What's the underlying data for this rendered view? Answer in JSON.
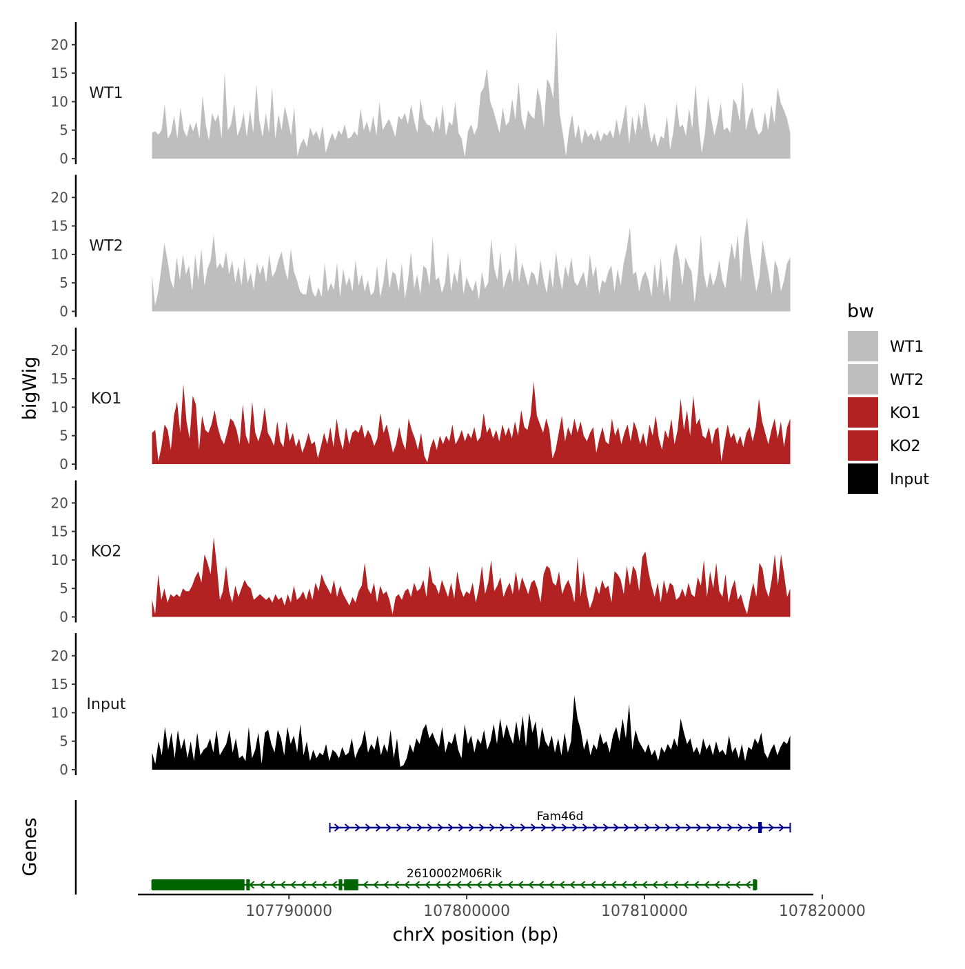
{
  "chart_data": {
    "type": "area",
    "title": "",
    "ylabel": "bigWig",
    "xlabel": "chrX position (bp)",
    "genes_label": "Genes",
    "xlim": [
      107781500,
      107819500
    ],
    "region": [
      107782300,
      107818200
    ],
    "ylim": [
      0,
      23
    ],
    "y_ticks": [
      0,
      5,
      10,
      15,
      20
    ],
    "x_ticks": [
      107790000,
      107800000,
      107810000,
      107820000
    ],
    "x_tick_labels": [
      "107790000",
      "107800000",
      "107810000",
      "107820000"
    ],
    "legend": {
      "title": "bw",
      "position": "right",
      "entries": [
        {
          "label": "WT1",
          "color": "#bebebe"
        },
        {
          "label": "WT2",
          "color": "#bebebe"
        },
        {
          "label": "KO1",
          "color": "#b22222"
        },
        {
          "label": "KO2",
          "color": "#b22222"
        },
        {
          "label": "Input",
          "color": "#000000"
        }
      ]
    },
    "series": [
      {
        "name": "WT1",
        "color": "#bebebe",
        "values": [
          4.5,
          4.8,
          4.2,
          5.0,
          9.6,
          3.5,
          4.5,
          7.5,
          3.5,
          9.0,
          5.0,
          3.8,
          6.2,
          4.8,
          6.5,
          3.5,
          11.0,
          6.0,
          3.2,
          8.0,
          6.5,
          7.8,
          3.5,
          15.2,
          5.0,
          6.0,
          9.5,
          4.0,
          5.5,
          8.0,
          3.8,
          8.5,
          4.5,
          13.0,
          6.5,
          3.8,
          8.0,
          4.5,
          12.5,
          3.5,
          7.8,
          5.0,
          9.2,
          6.8,
          4.0,
          9.0,
          0.5,
          2.5,
          3.5,
          2.0,
          5.5,
          4.0,
          4.8,
          3.2,
          5.8,
          1.0,
          3.0,
          4.5,
          3.2,
          5.0,
          4.2,
          6.0,
          3.5,
          3.8,
          4.8,
          4.0,
          8.8,
          5.0,
          6.5,
          4.5,
          7.5,
          4.0,
          10.0,
          5.0,
          6.0,
          7.0,
          5.5,
          3.8,
          7.5,
          6.8,
          8.0,
          6.0,
          9.5,
          6.5,
          4.5,
          10.5,
          7.0,
          6.0,
          5.8,
          4.5,
          7.5,
          5.0,
          9.5,
          4.0,
          6.5,
          5.8,
          10.0,
          4.5,
          3.5,
          0.3,
          4.8,
          6.0,
          4.2,
          5.5,
          11.5,
          12.5,
          15.8,
          10.0,
          8.5,
          6.5,
          4.5,
          9.0,
          5.8,
          6.5,
          10.5,
          6.8,
          13.5,
          7.0,
          5.0,
          8.5,
          7.5,
          7.0,
          12.5,
          10.0,
          5.5,
          14.0,
          13.0,
          10.5,
          22.5,
          8.0,
          4.5,
          0.5,
          5.0,
          7.8,
          3.5,
          6.0,
          2.5,
          5.2,
          3.8,
          4.5,
          3.2,
          5.0,
          3.0,
          4.5,
          4.0,
          5.0,
          3.5,
          7.0,
          4.0,
          6.5,
          9.5,
          2.5,
          7.5,
          4.0,
          8.0,
          5.0,
          10.0,
          6.0,
          2.8,
          4.5,
          2.0,
          4.0,
          3.5,
          7.5,
          1.5,
          4.8,
          9.8,
          5.5,
          6.0,
          4.0,
          8.8,
          5.2,
          13.0,
          6.0,
          1.0,
          4.5,
          10.8,
          7.0,
          4.0,
          6.5,
          9.8,
          5.0,
          5.5,
          4.5,
          10.5,
          9.5,
          6.5,
          13.5,
          5.0,
          7.5,
          9.0,
          5.5,
          4.2,
          4.8,
          8.2,
          5.0,
          9.5,
          6.2,
          12.5,
          9.8,
          8.5,
          7.0,
          4.5
        ]
      },
      {
        "name": "WT2",
        "color": "#bebebe",
        "values": [
          6.2,
          1.0,
          3.5,
          7.5,
          12.0,
          9.0,
          5.5,
          4.0,
          9.5,
          5.5,
          10.0,
          6.5,
          8.0,
          3.5,
          10.0,
          5.5,
          11.0,
          4.5,
          7.5,
          9.0,
          13.5,
          7.5,
          8.5,
          7.5,
          10.5,
          6.5,
          9.0,
          5.0,
          8.0,
          4.5,
          9.5,
          5.0,
          6.8,
          3.8,
          8.5,
          6.5,
          8.2,
          5.0,
          10.0,
          6.0,
          7.0,
          9.0,
          10.5,
          7.5,
          5.5,
          11.0,
          7.0,
          5.5,
          3.5,
          3.0,
          3.0,
          6.5,
          3.5,
          2.5,
          4.2,
          2.5,
          8.5,
          3.5,
          5.0,
          3.8,
          8.5,
          2.5,
          7.5,
          4.5,
          6.0,
          3.5,
          9.0,
          4.5,
          6.5,
          3.5,
          5.5,
          2.8,
          3.5,
          8.0,
          2.5,
          5.0,
          9.5,
          4.0,
          7.0,
          6.5,
          3.5,
          8.5,
          2.2,
          5.5,
          10.5,
          4.0,
          6.5,
          3.0,
          8.0,
          7.5,
          4.5,
          13.0,
          5.5,
          6.0,
          3.2,
          5.0,
          10.5,
          3.5,
          7.0,
          5.0,
          9.5,
          3.0,
          6.0,
          4.5,
          3.5,
          5.5,
          2.0,
          7.0,
          4.0,
          5.0,
          12.8,
          7.5,
          5.5,
          10.5,
          4.0,
          6.0,
          7.5,
          5.0,
          12.0,
          5.0,
          8.5,
          6.5,
          4.5,
          7.0,
          6.5,
          4.5,
          9.0,
          5.5,
          3.2,
          7.5,
          4.0,
          10.5,
          6.5,
          3.8,
          8.0,
          6.0,
          9.5,
          5.2,
          4.5,
          5.8,
          7.0,
          4.0,
          10.0,
          6.0,
          8.0,
          3.0,
          5.5,
          5.0,
          7.0,
          8.0,
          3.5,
          7.5,
          4.5,
          8.5,
          11.0,
          14.8,
          6.5,
          7.0,
          3.5,
          6.0,
          7.0,
          5.5,
          2.5,
          8.5,
          4.0,
          9.5,
          2.8,
          6.5,
          1.5,
          9.5,
          12.0,
          9.0,
          4.5,
          9.5,
          8.0,
          7.0,
          1.5,
          6.5,
          13.5,
          6.5,
          4.0,
          7.0,
          4.5,
          6.0,
          9.0,
          5.5,
          4.0,
          8.5,
          12.0,
          9.0,
          13.5,
          5.0,
          12.8,
          16.5,
          10.5,
          7.0,
          3.5,
          6.0,
          12.5,
          9.5,
          6.5,
          3.0,
          9.0,
          7.5,
          3.5,
          5.5,
          8.5,
          9.5
        ]
      },
      {
        "name": "KO1",
        "color": "#b22222",
        "values": [
          5.5,
          6.0,
          0.5,
          3.0,
          7.0,
          6.0,
          2.5,
          8.5,
          11.0,
          5.5,
          14.0,
          7.5,
          4.5,
          12.0,
          10.5,
          2.5,
          8.5,
          6.0,
          5.5,
          7.0,
          9.5,
          6.5,
          4.5,
          3.5,
          5.5,
          8.0,
          7.5,
          6.0,
          3.5,
          10.5,
          5.0,
          3.5,
          11.0,
          5.5,
          4.0,
          6.0,
          10.0,
          5.5,
          4.5,
          3.2,
          7.5,
          4.0,
          3.0,
          7.5,
          4.0,
          5.5,
          3.0,
          4.5,
          2.0,
          3.5,
          5.5,
          3.5,
          4.0,
          1.0,
          3.2,
          5.5,
          3.5,
          6.5,
          3.0,
          8.0,
          4.5,
          2.5,
          6.5,
          3.5,
          5.5,
          6.0,
          5.5,
          7.0,
          4.5,
          6.0,
          5.0,
          3.2,
          4.5,
          9.0,
          5.5,
          7.0,
          4.5,
          2.0,
          3.5,
          6.5,
          4.0,
          2.5,
          8.0,
          6.0,
          4.5,
          2.5,
          5.5,
          1.5,
          0.3,
          3.0,
          4.5,
          2.5,
          5.0,
          3.5,
          5.0,
          4.0,
          7.0,
          3.5,
          4.5,
          6.0,
          4.0,
          5.5,
          4.5,
          6.5,
          4.0,
          4.8,
          9.0,
          5.5,
          6.5,
          4.5,
          6.0,
          4.0,
          7.0,
          5.0,
          6.5,
          4.5,
          7.5,
          5.0,
          9.5,
          6.5,
          6.0,
          8.5,
          14.5,
          8.5,
          7.0,
          5.5,
          8.0,
          6.0,
          1.0,
          2.5,
          5.5,
          8.5,
          4.0,
          6.5,
          5.0,
          8.0,
          5.5,
          7.5,
          5.0,
          4.0,
          5.5,
          6.5,
          2.0,
          4.5,
          6.5,
          4.0,
          3.5,
          8.0,
          5.0,
          6.5,
          3.5,
          5.5,
          7.0,
          4.0,
          7.5,
          6.0,
          3.5,
          5.5,
          3.0,
          7.0,
          5.0,
          8.5,
          4.5,
          2.5,
          6.0,
          4.5,
          8.0,
          3.5,
          6.0,
          11.5,
          6.0,
          9.5,
          5.0,
          12.0,
          7.0,
          8.0,
          5.0,
          4.5,
          6.5,
          3.5,
          6.0,
          6.5,
          0.5,
          4.0,
          7.0,
          4.5,
          5.5,
          3.5,
          5.0,
          3.0,
          5.5,
          6.5,
          4.0,
          6.5,
          11.5,
          7.5,
          5.5,
          3.5,
          6.0,
          8.0,
          4.5,
          7.5,
          3.0,
          6.5,
          8.0
        ]
      },
      {
        "name": "KO2",
        "color": "#b22222",
        "values": [
          3.0,
          0.5,
          7.5,
          3.0,
          5.0,
          2.5,
          4.0,
          3.5,
          4.0,
          3.5,
          5.0,
          4.5,
          4.5,
          5.5,
          7.0,
          8.0,
          6.0,
          11.0,
          9.5,
          7.5,
          14.0,
          9.0,
          3.0,
          4.5,
          9.0,
          4.5,
          2.5,
          5.5,
          3.5,
          5.0,
          6.5,
          5.5,
          5.0,
          3.0,
          3.5,
          4.0,
          3.5,
          3.0,
          3.5,
          2.5,
          4.0,
          3.0,
          3.5,
          2.0,
          4.0,
          2.5,
          5.5,
          3.0,
          3.5,
          4.5,
          3.0,
          5.0,
          3.0,
          6.0,
          4.5,
          7.5,
          6.0,
          5.0,
          4.0,
          6.5,
          3.5,
          5.5,
          4.0,
          3.0,
          2.0,
          3.5,
          2.5,
          4.5,
          5.5,
          9.5,
          5.0,
          4.0,
          6.0,
          2.5,
          5.5,
          4.0,
          4.5,
          3.0,
          0.5,
          3.5,
          4.0,
          3.0,
          4.5,
          5.0,
          3.5,
          6.0,
          4.5,
          5.0,
          6.5,
          3.5,
          9.0,
          6.0,
          5.5,
          4.0,
          6.5,
          5.0,
          3.5,
          6.0,
          3.2,
          8.0,
          5.0,
          3.5,
          4.5,
          4.0,
          6.0,
          2.5,
          5.0,
          9.0,
          4.0,
          6.0,
          10.0,
          4.5,
          5.5,
          7.0,
          3.5,
          5.0,
          6.0,
          4.0,
          8.0,
          4.5,
          7.0,
          5.5,
          4.0,
          6.0,
          6.5,
          5.0,
          2.5,
          7.5,
          9.0,
          8.5,
          6.0,
          5.5,
          8.0,
          4.0,
          5.5,
          6.5,
          5.0,
          2.5,
          10.5,
          3.5,
          8.0,
          4.0,
          1.5,
          3.0,
          5.5,
          4.0,
          6.5,
          5.0,
          5.5,
          2.5,
          8.0,
          7.5,
          6.5,
          4.0,
          9.0,
          5.5,
          9.0,
          8.0,
          4.5,
          10.5,
          11.5,
          8.0,
          5.5,
          3.5,
          6.0,
          2.5,
          6.5,
          4.0,
          6.0,
          5.5,
          3.0,
          3.5,
          5.0,
          3.5,
          6.0,
          4.0,
          3.5,
          7.0,
          5.5,
          10.0,
          3.5,
          8.0,
          5.0,
          9.5,
          4.5,
          3.5,
          7.5,
          2.5,
          5.0,
          6.5,
          3.0,
          4.0,
          2.0,
          0.5,
          3.5,
          6.0,
          3.5,
          9.5,
          8.5,
          5.0,
          3.5,
          6.5,
          11.0,
          5.5,
          11.0,
          7.5,
          3.5,
          5.0
        ]
      },
      {
        "name": "Input",
        "color": "#000000",
        "values": [
          3.0,
          1.0,
          5.0,
          2.5,
          7.5,
          3.5,
          6.5,
          2.0,
          7.0,
          3.5,
          5.5,
          2.0,
          5.0,
          1.5,
          6.5,
          2.5,
          3.5,
          4.0,
          5.5,
          3.0,
          7.0,
          2.5,
          3.5,
          4.5,
          7.0,
          3.0,
          5.5,
          2.0,
          2.5,
          1.5,
          7.5,
          2.0,
          3.5,
          6.5,
          1.0,
          6.5,
          7.0,
          4.5,
          3.0,
          7.0,
          5.5,
          2.5,
          7.5,
          4.5,
          6.0,
          3.0,
          8.0,
          2.5,
          5.0,
          1.5,
          3.5,
          2.0,
          3.0,
          2.5,
          4.5,
          1.5,
          3.5,
          3.0,
          2.0,
          4.0,
          2.5,
          3.0,
          5.5,
          2.0,
          3.5,
          4.5,
          7.0,
          3.0,
          4.5,
          3.5,
          6.0,
          2.5,
          4.5,
          3.0,
          7.0,
          2.0,
          5.5,
          0.5,
          0.8,
          2.0,
          4.5,
          3.0,
          5.5,
          4.5,
          7.0,
          8.0,
          5.5,
          6.5,
          5.0,
          4.0,
          7.5,
          3.0,
          5.0,
          4.5,
          6.5,
          3.5,
          2.0,
          8.0,
          4.5,
          6.0,
          3.0,
          5.5,
          4.5,
          7.0,
          3.5,
          5.0,
          8.0,
          4.5,
          9.0,
          5.5,
          8.0,
          6.0,
          4.5,
          8.5,
          5.0,
          9.5,
          4.0,
          10.0,
          6.5,
          8.5,
          3.5,
          7.5,
          5.0,
          4.0,
          6.0,
          3.0,
          5.5,
          2.5,
          6.5,
          3.0,
          5.0,
          13.0,
          9.0,
          7.0,
          3.5,
          5.5,
          2.5,
          4.5,
          3.5,
          6.5,
          4.5,
          5.0,
          3.0,
          6.0,
          7.5,
          5.0,
          9.0,
          5.5,
          11.5,
          3.5,
          7.0,
          5.0,
          4.0,
          3.0,
          4.5,
          2.5,
          3.5,
          1.5,
          4.0,
          3.0,
          4.5,
          3.5,
          5.5,
          4.0,
          9.0,
          6.5,
          4.5,
          5.5,
          3.0,
          4.0,
          2.5,
          5.5,
          3.5,
          4.5,
          2.5,
          5.0,
          3.0,
          3.5,
          2.5,
          6.0,
          3.0,
          4.0,
          2.0,
          4.5,
          1.5,
          4.0,
          3.5,
          5.5,
          4.5,
          6.5,
          3.0,
          2.0,
          3.5,
          4.5,
          2.5,
          4.0,
          5.0,
          4.5,
          6.0
        ]
      }
    ],
    "genes": [
      {
        "name": "Fam46d",
        "strand": "+",
        "color": "#00008b",
        "start": 107792300,
        "end": 107818200,
        "exons": [
          [
            107816400,
            107816600
          ]
        ]
      },
      {
        "name": "2610002M06Rik",
        "strand": "-",
        "color": "#006400",
        "start": 107782300,
        "end": 107816300,
        "exons": [
          [
            107782300,
            107787500
          ],
          [
            107787600,
            107787800
          ],
          [
            107792800,
            107793000
          ],
          [
            107793100,
            107793900
          ],
          [
            107816100,
            107816300
          ]
        ]
      }
    ]
  }
}
